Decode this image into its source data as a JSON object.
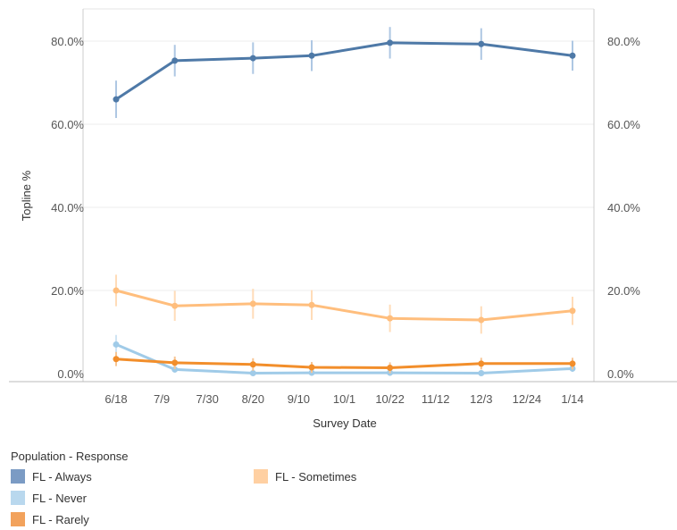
{
  "chart_data": {
    "type": "line",
    "xlabel": "Survey Date",
    "ylabel": "Topline %",
    "x_ticks": [
      "6/18",
      "7/9",
      "7/30",
      "8/20",
      "9/10",
      "10/1",
      "10/22",
      "11/12",
      "12/3",
      "12/24",
      "1/14"
    ],
    "y_ticks": [
      "0.0%",
      "20.0%",
      "40.0%",
      "60.0%",
      "80.0%"
    ],
    "ylim": [
      0,
      86
    ],
    "grid": true,
    "legend_title": "Population - Response",
    "legend_position": "bottom",
    "series": [
      {
        "name": "FL - Always",
        "color": "#4e79a7",
        "errcolor": "#aec7e3",
        "points": [
          {
            "date": "6/18",
            "y": 66.0,
            "err": 4.5
          },
          {
            "date": "7/15",
            "y": 75.3,
            "err": 3.8
          },
          {
            "date": "8/20",
            "y": 75.9,
            "err": 3.8
          },
          {
            "date": "9/16",
            "y": 76.5,
            "err": 3.7
          },
          {
            "date": "10/22",
            "y": 79.6,
            "err": 3.8
          },
          {
            "date": "12/3",
            "y": 79.3,
            "err": 3.8
          },
          {
            "date": "1/14",
            "y": 76.5,
            "err": 3.6
          }
        ]
      },
      {
        "name": "FL - Never",
        "color": "#a0cbe8",
        "errcolor": "#cfe4f3",
        "points": [
          {
            "date": "6/18",
            "y": 7.0,
            "err": 2.3
          },
          {
            "date": "7/15",
            "y": 1.0,
            "err": 0.8
          },
          {
            "date": "8/20",
            "y": 0.1,
            "err": 0.6
          },
          {
            "date": "9/16",
            "y": 0.2,
            "err": 0.6
          },
          {
            "date": "10/22",
            "y": 0.2,
            "err": 0.6
          },
          {
            "date": "12/3",
            "y": 0.1,
            "err": 0.6
          },
          {
            "date": "1/14",
            "y": 1.2,
            "err": 0.8
          }
        ]
      },
      {
        "name": "FL - Rarely",
        "color": "#f28e2b",
        "errcolor": "#f7c594",
        "points": [
          {
            "date": "6/18",
            "y": 3.5,
            "err": 1.7
          },
          {
            "date": "7/15",
            "y": 2.6,
            "err": 1.5
          },
          {
            "date": "8/20",
            "y": 2.2,
            "err": 1.5
          },
          {
            "date": "9/16",
            "y": 1.5,
            "err": 1.3
          },
          {
            "date": "10/22",
            "y": 1.4,
            "err": 1.3
          },
          {
            "date": "12/3",
            "y": 2.4,
            "err": 1.4
          },
          {
            "date": "1/14",
            "y": 2.4,
            "err": 1.4
          }
        ]
      },
      {
        "name": "FL - Sometimes",
        "color": "#ffbe7d",
        "errcolor": "#ffdcb8",
        "points": [
          {
            "date": "6/18",
            "y": 20.0,
            "err": 3.8
          },
          {
            "date": "7/15",
            "y": 16.3,
            "err": 3.6
          },
          {
            "date": "8/20",
            "y": 16.8,
            "err": 3.6
          },
          {
            "date": "9/16",
            "y": 16.5,
            "err": 3.6
          },
          {
            "date": "10/22",
            "y": 13.3,
            "err": 3.3
          },
          {
            "date": "12/3",
            "y": 12.9,
            "err": 3.3
          },
          {
            "date": "1/14",
            "y": 15.1,
            "err": 3.4
          }
        ]
      }
    ]
  }
}
